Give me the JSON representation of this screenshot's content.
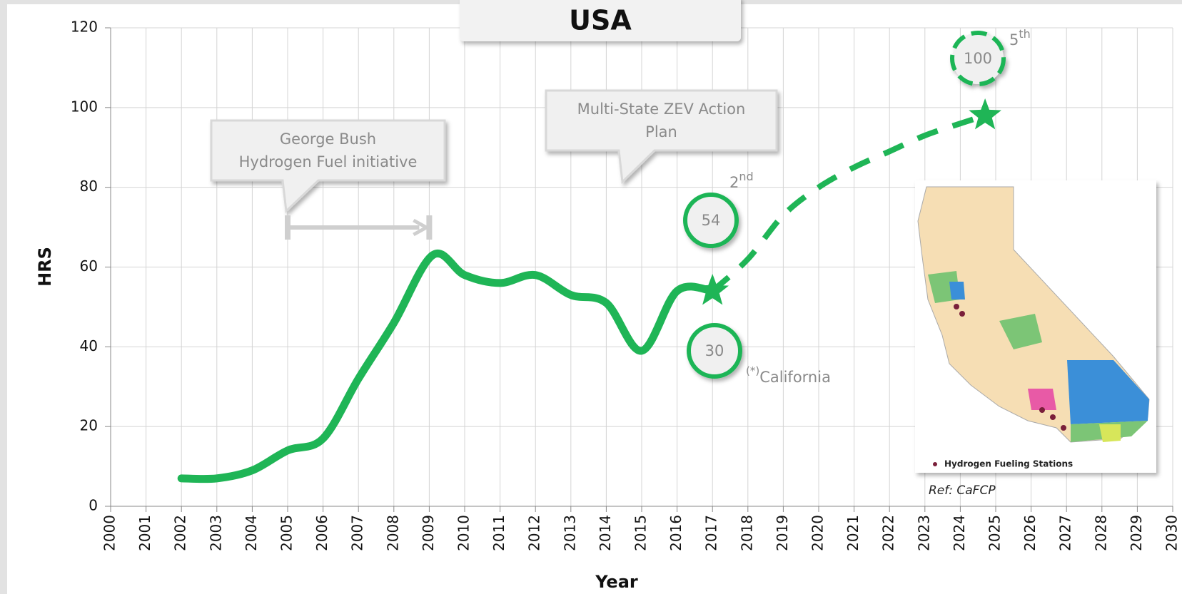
{
  "chart_data": {
    "type": "line",
    "title": "USA",
    "xlabel": "Year",
    "ylabel": "HRS",
    "xlim": [
      2000,
      2030
    ],
    "xticks": [
      2000,
      2001,
      2002,
      2003,
      2004,
      2005,
      2006,
      2007,
      2008,
      2009,
      2010,
      2011,
      2012,
      2013,
      2014,
      2015,
      2016,
      2017,
      2018,
      2019,
      2020,
      2021,
      2022,
      2023,
      2024,
      2025,
      2026,
      2027,
      2028,
      2029,
      2030
    ],
    "ylim": [
      0,
      120
    ],
    "yticks": [
      0,
      20,
      40,
      60,
      80,
      100,
      120
    ],
    "grid": true,
    "series": [
      {
        "color": "#1fb556",
        "style": "solid",
        "x": [
          2002,
          2003,
          2004,
          2005,
          2006,
          2007,
          2008,
          2009.1,
          2010,
          2011,
          2012,
          2013,
          2014,
          2015,
          2016,
          2017
        ],
        "values": [
          7,
          7,
          9,
          14,
          17,
          32,
          46,
          63,
          58,
          56,
          58,
          53,
          51,
          39,
          54,
          54
        ]
      },
      {
        "color": "#1fb556",
        "style": "dashed",
        "end_markers": "star",
        "x": [
          2017,
          2018,
          2019,
          2020,
          2021,
          2022,
          2023,
          2024,
          2024.7
        ],
        "values": [
          54,
          62,
          73,
          80,
          85,
          89,
          93,
          96,
          98
        ]
      }
    ],
    "callouts": [
      {
        "lines": [
          "George Bush",
          "Hydrogen Fuel initiative"
        ],
        "span": [
          2005,
          2009
        ]
      },
      {
        "lines": [
          "Multi-State ZEV Action",
          "Plan"
        ]
      }
    ],
    "badges": [
      {
        "text": "54",
        "rank": "2",
        "rank_suffix": "nd"
      },
      {
        "text": "30"
      },
      {
        "text": "100",
        "rank": "5",
        "rank_suffix": "th"
      }
    ],
    "note": {
      "mark": "(*)",
      "text": "California"
    },
    "map": {
      "legend": "Hydrogen Fueling Stations",
      "ref": "Ref: CaFCP"
    }
  }
}
